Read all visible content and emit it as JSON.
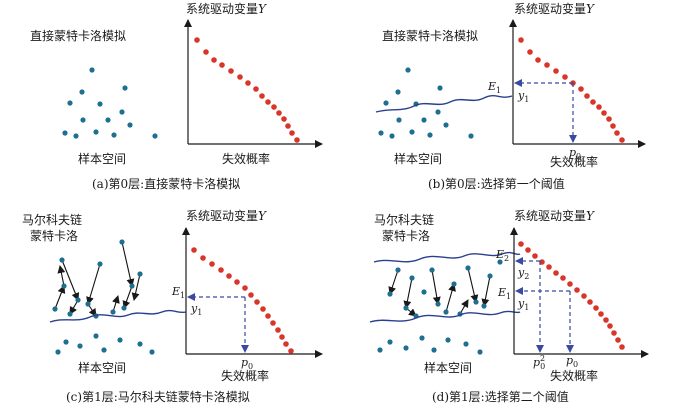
{
  "panels": {
    "a": {
      "method": "直接蒙特卡洛模拟",
      "y_axis": "系统驱动变量",
      "y_var": "Y",
      "space": "样本空间",
      "x_axis": "失效概率",
      "caption": "(a)第0层:直接蒙特卡洛模拟"
    },
    "b": {
      "method": "直接蒙特卡洛模拟",
      "y_axis": "系统驱动变量",
      "y_var": "Y",
      "space": "样本空间",
      "x_axis": "失效概率",
      "E1_base": "E",
      "E1_sub": "1",
      "y1_base": "y",
      "y1_sub": "1",
      "p0_base": "p",
      "p0_sub": "0",
      "caption": "(b)第0层:选择第一个阈值"
    },
    "c": {
      "method_line1": "马尔科夫链",
      "method_line2": "蒙特卡洛",
      "y_axis": "系统驱动变量",
      "y_var": "Y",
      "space": "样本空间",
      "x_axis": "失效概率",
      "E1_base": "E",
      "E1_sub": "1",
      "y1_base": "y",
      "y1_sub": "1",
      "p0_base": "p",
      "p0_sub": "0",
      "caption": "(c)第1层:马尔科夫链蒙特卡洛模拟"
    },
    "d": {
      "method_line1": "马尔科夫链",
      "method_line2": "蒙特卡洛",
      "y_axis": "系统驱动变量",
      "y_var": "Y",
      "space": "样本空间",
      "x_axis": "失效概率",
      "E2_base": "E",
      "E2_sub": "2",
      "E1_base": "E",
      "E1_sub": "1",
      "y2_base": "y",
      "y2_sub": "2",
      "y1_base": "y",
      "y1_sub": "1",
      "p02_base": "p",
      "p02_sub": "0",
      "p02_sup": "2",
      "p0_base": "p",
      "p0_sub": "0",
      "caption": "(d)第1层:选择第二个阈值"
    }
  },
  "colors": {
    "sample_point": "#1f6f8f",
    "curve_point": "#d9362b",
    "limit_line": "#2b3f8f",
    "guide": "#3b4aa0",
    "axis": "#1a1a1a"
  }
}
